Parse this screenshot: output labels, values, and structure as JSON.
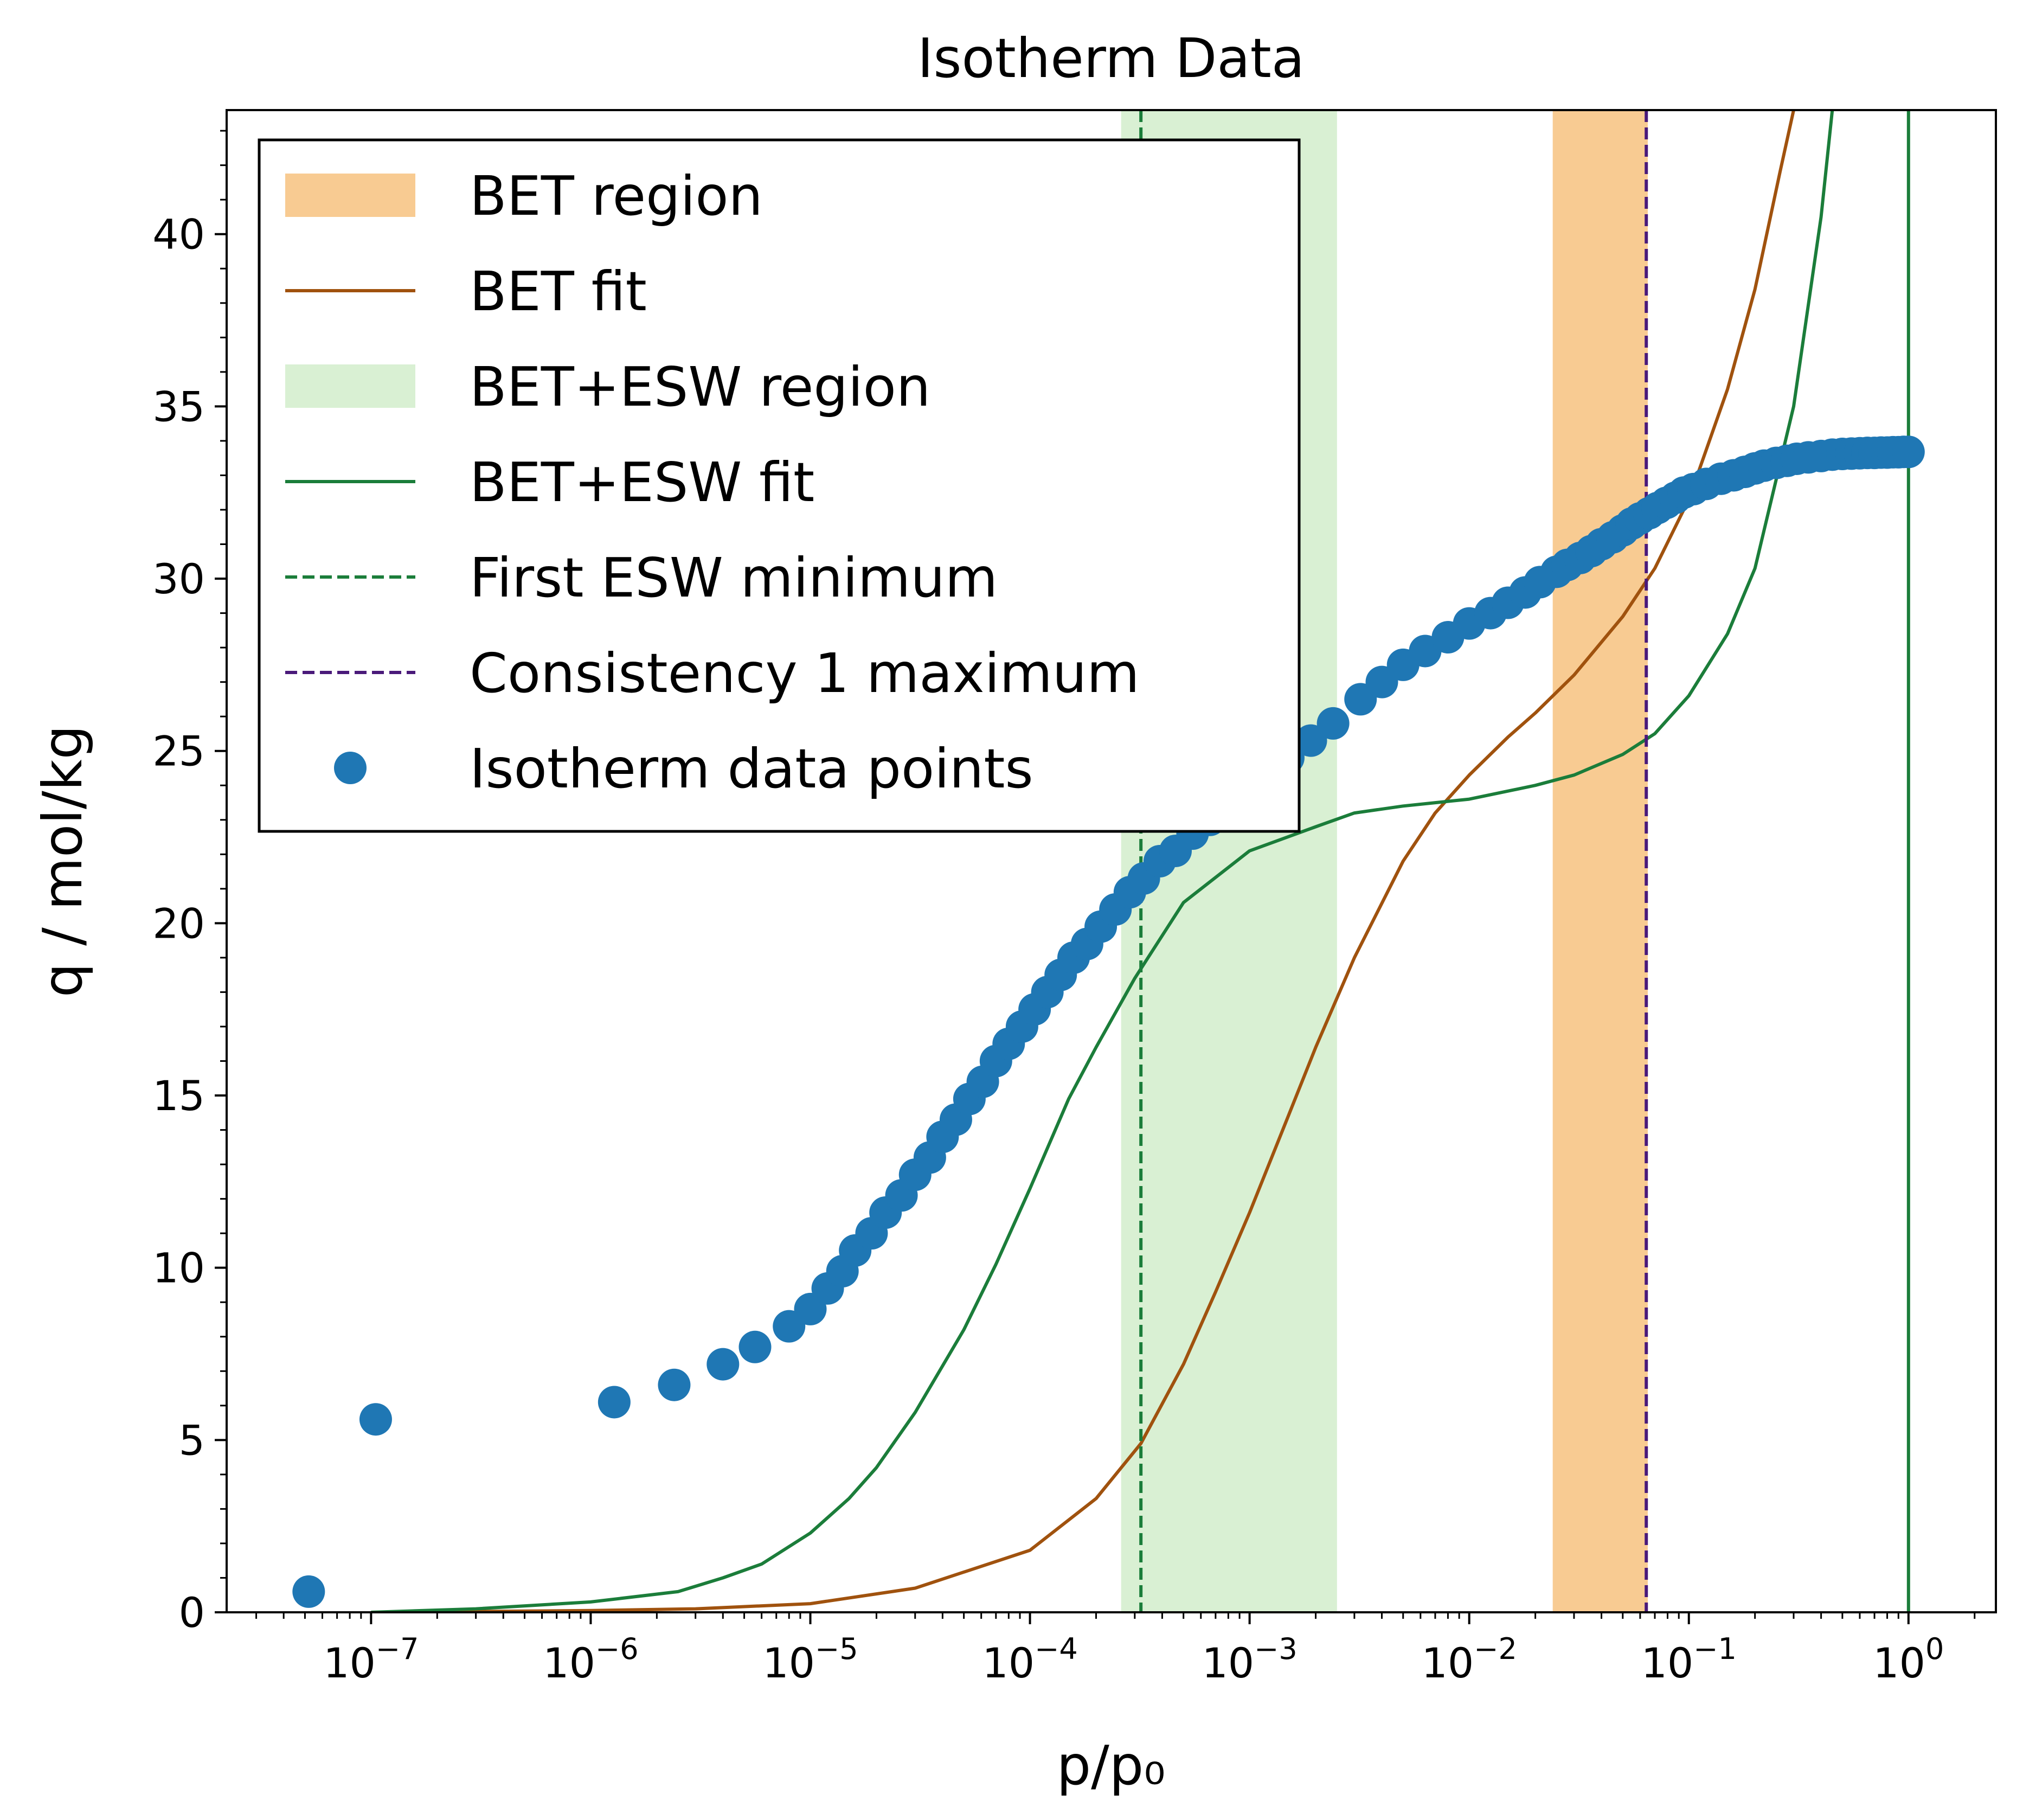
{
  "chart_data": {
    "type": "scatter",
    "title": "Isotherm Data",
    "xlabel": "p/p₀",
    "ylabel": "q / mol/kg",
    "xscale": "log",
    "xlim": [
      2.2e-08,
      2.5
    ],
    "ylim": [
      0,
      43.6
    ],
    "x_ticks": [
      {
        "value": 1e-07,
        "base": "10",
        "exp": "−7"
      },
      {
        "value": 1e-06,
        "base": "10",
        "exp": "−6"
      },
      {
        "value": 1e-05,
        "base": "10",
        "exp": "−5"
      },
      {
        "value": 0.0001,
        "base": "10",
        "exp": "−4"
      },
      {
        "value": 0.001,
        "base": "10",
        "exp": "−3"
      },
      {
        "value": 0.01,
        "base": "10",
        "exp": "−2"
      },
      {
        "value": 0.1,
        "base": "10",
        "exp": "−1"
      },
      {
        "value": 1,
        "base": "10",
        "exp": "0"
      }
    ],
    "y_ticks": [
      {
        "value": 0,
        "label": "0"
      },
      {
        "value": 5,
        "label": "5"
      },
      {
        "value": 10,
        "label": "10"
      },
      {
        "value": 15,
        "label": "15"
      },
      {
        "value": 20,
        "label": "20"
      },
      {
        "value": 25,
        "label": "25"
      },
      {
        "value": 30,
        "label": "30"
      },
      {
        "value": 35,
        "label": "35"
      },
      {
        "value": 40,
        "label": "40"
      }
    ],
    "legend_position": "top-left",
    "regions": [
      {
        "name": "BET region",
        "x_range": [
          0.024,
          0.065
        ],
        "color": "#f8cb92"
      },
      {
        "name": "BET+ESW region",
        "x_range": [
          0.00026,
          0.0025
        ],
        "color": "#d9f0d3"
      }
    ],
    "lines": [
      {
        "name": "BET fit",
        "color": "#a0520e",
        "x": [
          1e-07,
          1e-06,
          3e-06,
          1e-05,
          3e-05,
          0.0001,
          0.0002,
          0.00032,
          0.0005,
          0.0007,
          0.001,
          0.0015,
          0.002,
          0.003,
          0.005,
          0.007,
          0.01,
          0.015,
          0.02,
          0.03,
          0.05,
          0.07,
          0.1,
          0.15,
          0.2,
          0.26,
          0.3
        ],
        "y": [
          0,
          0.05,
          0.1,
          0.25,
          0.7,
          1.8,
          3.3,
          4.9,
          7.2,
          9.3,
          11.6,
          14.4,
          16.4,
          19.0,
          21.8,
          23.2,
          24.3,
          25.4,
          26.1,
          27.2,
          28.9,
          30.3,
          32.3,
          35.5,
          38.4,
          41.8,
          43.6
        ]
      },
      {
        "name": "BET+ESW fit",
        "color": "#1b7d3a",
        "x": [
          1e-07,
          3e-07,
          1e-06,
          2.5e-06,
          4e-06,
          6e-06,
          1e-05,
          1.5e-05,
          2e-05,
          3e-05,
          5e-05,
          7e-05,
          0.0001,
          0.00015,
          0.0002,
          0.0003,
          0.0005,
          0.001,
          0.002,
          0.003,
          0.005,
          0.01,
          0.02,
          0.03,
          0.05,
          0.07,
          0.1,
          0.15,
          0.2,
          0.3,
          0.4,
          0.45
        ],
        "y": [
          0,
          0.1,
          0.3,
          0.6,
          1.0,
          1.4,
          2.3,
          3.3,
          4.2,
          5.8,
          8.2,
          10.1,
          12.3,
          14.9,
          16.4,
          18.4,
          20.6,
          22.1,
          22.8,
          23.2,
          23.4,
          23.6,
          24.0,
          24.3,
          24.9,
          25.5,
          26.6,
          28.4,
          30.3,
          35.0,
          40.5,
          43.6
        ]
      },
      {
        "name": "First ESW minimum",
        "color": "#1b7d3a",
        "dashed": true,
        "vertical_x": 0.00032
      },
      {
        "name": "Consistency 1 maximum",
        "color": "#4a1a7a",
        "dashed": true,
        "vertical_x": 0.064
      },
      {
        "name": "",
        "color": "#1b7d3a",
        "dashed": false,
        "vertical_x": 1.0
      }
    ],
    "series": [
      {
        "name": "Isotherm data points",
        "color": "#1f77b4",
        "x": [
          5.2e-08,
          1.05e-07,
          1.28e-06,
          2.4e-06,
          4e-06,
          5.6e-06,
          8e-06,
          1e-05,
          1.2e-05,
          1.4e-05,
          1.6e-05,
          1.9e-05,
          2.2e-05,
          2.6e-05,
          3e-05,
          3.5e-05,
          4e-05,
          4.6e-05,
          5.3e-05,
          6.1e-05,
          7e-05,
          8e-05,
          9.2e-05,
          0.000105,
          0.00012,
          0.000138,
          0.000158,
          0.000182,
          0.00021,
          0.000245,
          0.000285,
          0.00033,
          0.00039,
          0.00046,
          0.00055,
          0.00066,
          0.0008,
          0.00098,
          0.0012,
          0.0015,
          0.0019,
          0.0024,
          0.0032,
          0.004,
          0.005,
          0.0063,
          0.008,
          0.01,
          0.0125,
          0.015,
          0.018,
          0.021,
          0.025,
          0.028,
          0.032,
          0.036,
          0.04,
          0.045,
          0.05,
          0.055,
          0.06,
          0.066,
          0.072,
          0.079,
          0.087,
          0.095,
          0.105,
          0.12,
          0.14,
          0.16,
          0.18,
          0.2,
          0.22,
          0.25,
          0.28,
          0.31,
          0.35,
          0.4,
          0.45,
          0.5,
          0.55,
          0.6,
          0.65,
          0.7,
          0.75,
          0.8,
          0.85,
          0.9,
          0.95,
          1.0
        ],
        "y": [
          0.6,
          5.6,
          6.1,
          6.6,
          7.2,
          7.7,
          8.3,
          8.8,
          9.4,
          9.9,
          10.5,
          11.0,
          11.6,
          12.1,
          12.7,
          13.2,
          13.8,
          14.3,
          14.9,
          15.4,
          16.0,
          16.5,
          17.0,
          17.5,
          18.0,
          18.5,
          19.0,
          19.4,
          19.9,
          20.4,
          20.9,
          21.3,
          21.8,
          22.1,
          22.6,
          23.0,
          23.5,
          23.9,
          24.4,
          24.8,
          25.3,
          25.8,
          26.5,
          27.0,
          27.5,
          27.9,
          28.3,
          28.7,
          29.0,
          29.3,
          29.6,
          29.9,
          30.2,
          30.4,
          30.6,
          30.8,
          31.0,
          31.2,
          31.4,
          31.6,
          31.75,
          31.9,
          32.05,
          32.2,
          32.35,
          32.5,
          32.6,
          32.75,
          32.9,
          33.0,
          33.1,
          33.2,
          33.28,
          33.36,
          33.42,
          33.48,
          33.52,
          33.56,
          33.6,
          33.62,
          33.63,
          33.64,
          33.65,
          33.65,
          33.66,
          33.66,
          33.67,
          33.67,
          33.68,
          33.68
        ]
      }
    ],
    "legend": [
      {
        "label": "BET region",
        "kind": "patch",
        "color": "#f8cb92"
      },
      {
        "label": "BET fit",
        "kind": "line",
        "color": "#a0520e",
        "dashed": false
      },
      {
        "label": "BET+ESW region",
        "kind": "patch",
        "color": "#d9f0d3"
      },
      {
        "label": "BET+ESW fit",
        "kind": "line",
        "color": "#1b7d3a",
        "dashed": false
      },
      {
        "label": "First ESW minimum",
        "kind": "line",
        "color": "#1b7d3a",
        "dashed": true
      },
      {
        "label": "Consistency 1 maximum",
        "kind": "line",
        "color": "#4a1a7a",
        "dashed": true
      },
      {
        "label": "Isotherm data points",
        "kind": "marker",
        "color": "#1f77b4"
      }
    ]
  }
}
